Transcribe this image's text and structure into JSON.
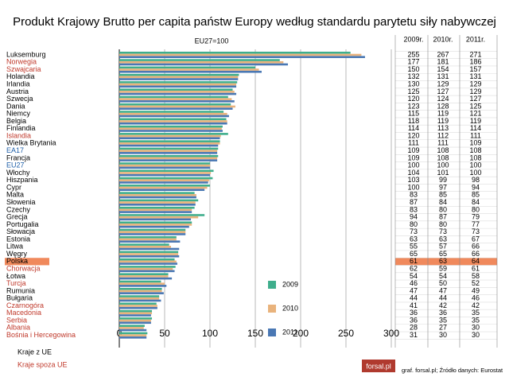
{
  "chart_data": {
    "type": "bar",
    "orientation": "horizontal",
    "title": "Produkt Krajowy Brutto per capita państw Europy według standardu parytetu siły nabywczej",
    "annotation": "EU27=100",
    "categories": [
      "Luksemburg",
      "Norwegia",
      "Szwajcaria",
      "Holandia",
      "Irlandia",
      "Austria",
      "Szwecja",
      "Dania",
      "Niemcy",
      "Belgia",
      "Finlandia",
      "Islandia",
      "Wielka Brytania",
      "EA17",
      "Francja",
      "EU27",
      "Włochy",
      "Hiszpania",
      "Cypr",
      "Malta",
      "Słowenia",
      "Czechy",
      "Grecja",
      "Portugalia",
      "Słowacja",
      "Estonia",
      "Litwa",
      "Węgry",
      "Polska",
      "Chorwacja",
      "Łotwa",
      "Turcja",
      "Rumunia",
      "Bułgaria",
      "Czarnogóra",
      "Macedonia",
      "Serbia",
      "Albania",
      "Bośnia i Hercegowina"
    ],
    "category_colors": [
      "#000",
      "#c0392b",
      "#c0392b",
      "#000",
      "#000",
      "#000",
      "#000",
      "#000",
      "#000",
      "#000",
      "#000",
      "#c0392b",
      "#000",
      "#1f5fa8",
      "#000",
      "#1f5fa8",
      "#000",
      "#000",
      "#000",
      "#000",
      "#000",
      "#000",
      "#000",
      "#000",
      "#000",
      "#000",
      "#000",
      "#000",
      "#000",
      "#c0392b",
      "#000",
      "#c0392b",
      "#000",
      "#000",
      "#c0392b",
      "#c0392b",
      "#c0392b",
      "#c0392b",
      "#c0392b"
    ],
    "highlight_index": 28,
    "highlight_color": "#f0895c",
    "series": [
      {
        "name": "2009",
        "color": "#3fae8c",
        "values": [
          255,
          177,
          150,
          132,
          130,
          125,
          120,
          123,
          115,
          118,
          114,
          120,
          111,
          109,
          109,
          100,
          104,
          103,
          100,
          83,
          87,
          83,
          94,
          80,
          73,
          63,
          55,
          65,
          61,
          62,
          54,
          46,
          47,
          44,
          41,
          36,
          36,
          28,
          31
        ]
      },
      {
        "name": "2010",
        "color": "#e9b37c",
        "values": [
          267,
          181,
          154,
          131,
          129,
          127,
          124,
          128,
          119,
          119,
          113,
          112,
          111,
          108,
          108,
          100,
          101,
          99,
          97,
          85,
          84,
          80,
          87,
          80,
          73,
          63,
          57,
          65,
          63,
          59,
          54,
          50,
          47,
          44,
          42,
          36,
          35,
          27,
          30
        ]
      },
      {
        "name": "2011",
        "color": "#4a78b4",
        "values": [
          271,
          186,
          157,
          131,
          129,
          129,
          127,
          125,
          121,
          119,
          114,
          111,
          109,
          108,
          108,
          100,
          100,
          98,
          94,
          85,
          84,
          80,
          79,
          77,
          73,
          67,
          66,
          66,
          64,
          61,
          58,
          52,
          49,
          46,
          42,
          35,
          35,
          30,
          30
        ]
      }
    ],
    "table_headers": [
      "2009r.",
      "2010r.",
      "2011r."
    ],
    "xlim": [
      0,
      300
    ],
    "xticks": [
      0,
      50,
      100,
      150,
      200,
      250,
      300
    ],
    "grid": true,
    "notes": [
      {
        "text": "Kraje z UE",
        "color": "#000"
      },
      {
        "text": "Kraje spoza UE",
        "color": "#c0392b"
      }
    ],
    "logo": "forsal.pl",
    "source": "graf. forsal.pl; Źródło danych: Eurostat"
  }
}
